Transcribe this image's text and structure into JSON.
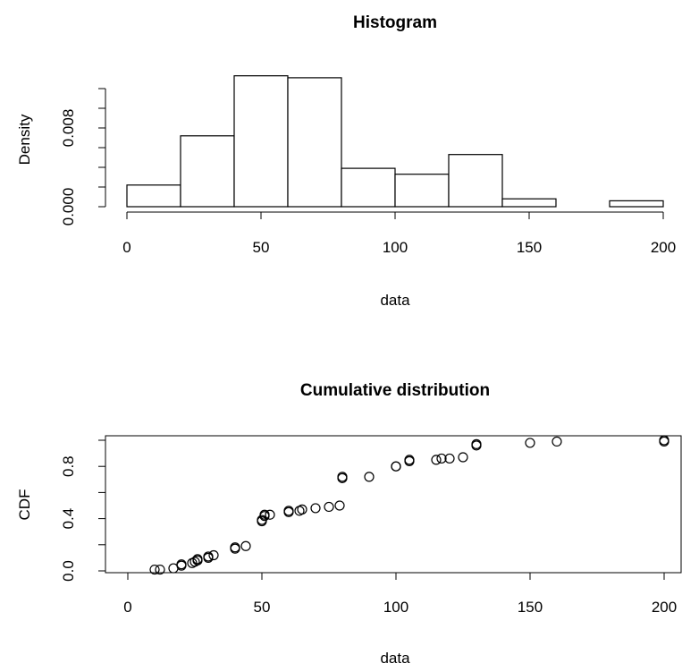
{
  "chart_data": [
    {
      "type": "bar",
      "title": "Histogram",
      "xlabel": "data",
      "ylabel": "Density",
      "bin_edges": [
        0,
        20,
        40,
        60,
        80,
        100,
        120,
        140,
        160,
        180,
        200
      ],
      "values": [
        0.0022,
        0.0072,
        0.0133,
        0.0131,
        0.0039,
        0.0033,
        0.0053,
        0.0008,
        0.0,
        0.0006
      ],
      "xlim": [
        0,
        200
      ],
      "ylim": [
        0,
        0.012
      ],
      "xticks": [
        0,
        50,
        100,
        150,
        200
      ],
      "xtick_labels": [
        "0",
        "50",
        "100",
        "150",
        "200"
      ],
      "yticks": [
        0,
        0.002,
        0.004,
        0.006,
        0.008,
        0.01,
        0.012
      ],
      "ytick_labels": [
        "0.000",
        "",
        "",
        "",
        "0.008",
        "",
        ""
      ]
    },
    {
      "type": "scatter",
      "title": "Cumulative distribution",
      "xlabel": "data",
      "ylabel": "CDF",
      "x": [
        10,
        12,
        17,
        20,
        20,
        24,
        25,
        26,
        26,
        30,
        30,
        32,
        40,
        40,
        44,
        50,
        50,
        51,
        51,
        53,
        60,
        60,
        64,
        65,
        70,
        75,
        79,
        80,
        80,
        90,
        100,
        100,
        105,
        105,
        115,
        117,
        120,
        125,
        130,
        130,
        150,
        160,
        200,
        200
      ],
      "y": [
        0.01,
        0.01,
        0.02,
        0.04,
        0.05,
        0.06,
        0.07,
        0.08,
        0.09,
        0.1,
        0.11,
        0.12,
        0.17,
        0.18,
        0.19,
        0.38,
        0.39,
        0.42,
        0.43,
        0.43,
        0.45,
        0.46,
        0.46,
        0.47,
        0.48,
        0.49,
        0.5,
        0.71,
        0.72,
        0.72,
        0.8,
        0.8,
        0.84,
        0.85,
        0.85,
        0.86,
        0.86,
        0.87,
        0.96,
        0.97,
        0.98,
        0.99,
        0.99,
        1.0
      ],
      "xlim": [
        -8,
        208
      ],
      "ylim": [
        0,
        1.0
      ],
      "xticks": [
        0,
        50,
        100,
        150,
        200
      ],
      "xtick_labels": [
        "0",
        "50",
        "100",
        "150",
        "200"
      ],
      "yticks": [
        0,
        0.2,
        0.4,
        0.6,
        0.8,
        1.0
      ],
      "ytick_labels": [
        "0.0",
        "",
        "0.4",
        "",
        "0.8",
        ""
      ],
      "box": true
    }
  ]
}
